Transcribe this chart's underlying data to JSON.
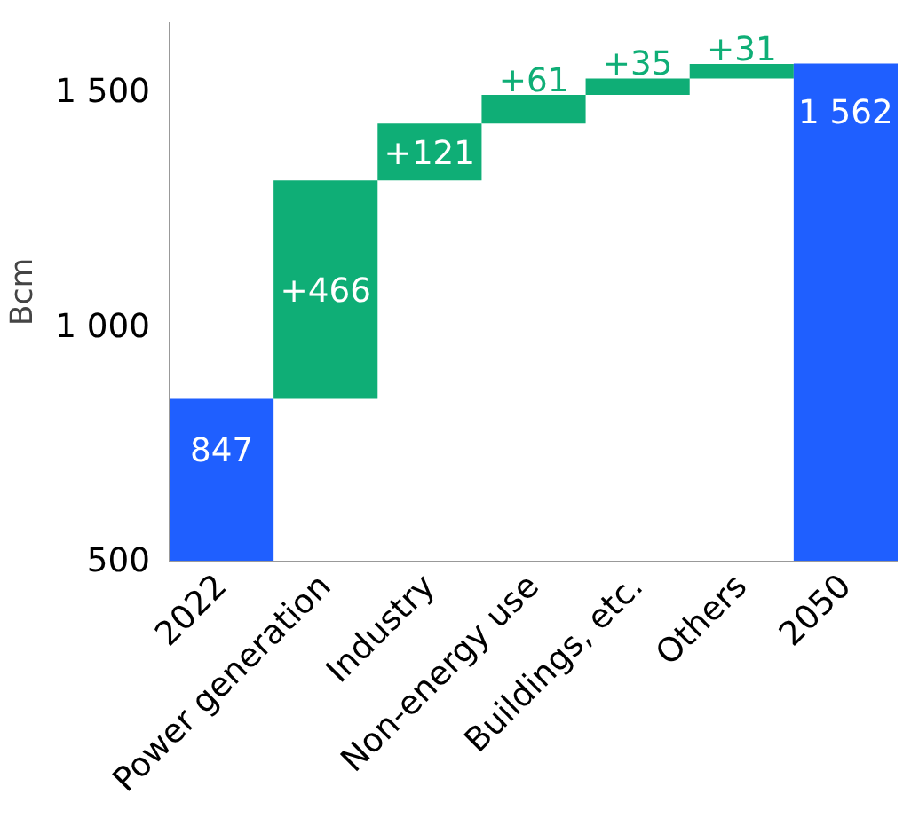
{
  "chart_data": {
    "type": "bar",
    "ylabel": "Bcm",
    "categories": [
      "2022",
      "Power generation",
      "Industry",
      "Non-energy use",
      "Buildings, etc.",
      "Others",
      "2050"
    ],
    "values": [
      847,
      466,
      121,
      61,
      35,
      31,
      1562
    ],
    "base": [
      0,
      847,
      1313,
      1434,
      1495,
      1530,
      0
    ],
    "colors": [
      "#1f5fff",
      "#0fae76",
      "#0fae76",
      "#0fae76",
      "#0fae76",
      "#0fae76",
      "#1f5fff"
    ],
    "value_labels": [
      "847",
      "+466",
      "+121",
      "+61",
      "+35",
      "+31",
      "1 562"
    ],
    "ylim": [
      500,
      1650
    ],
    "yticks": [
      {
        "value": 500,
        "label": "500"
      },
      {
        "value": 1000,
        "label": "1 000"
      },
      {
        "value": 1500,
        "label": "1 500"
      }
    ],
    "grid": false
  }
}
